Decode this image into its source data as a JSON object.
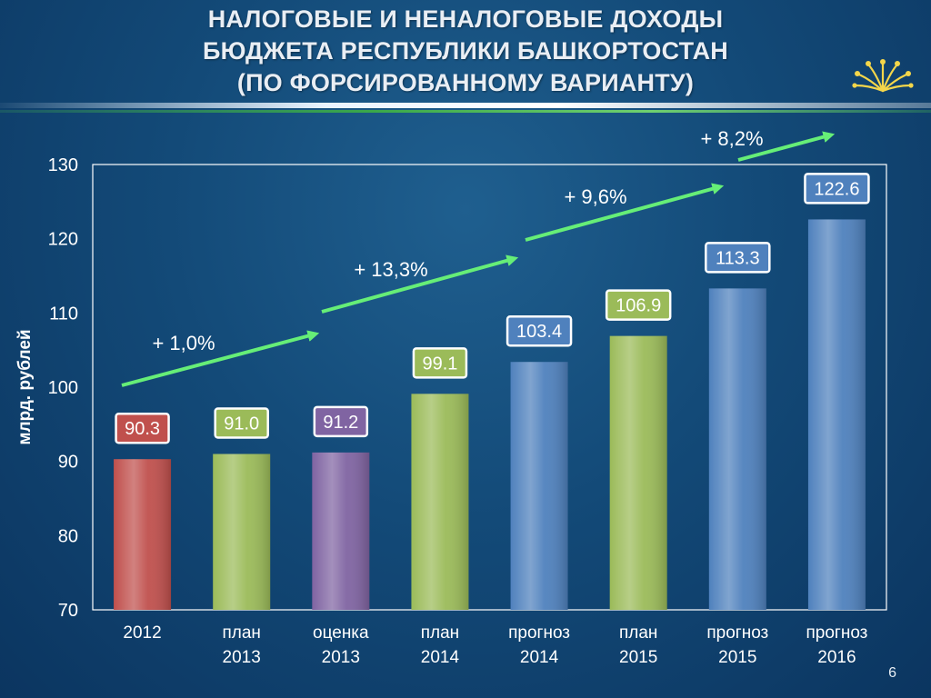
{
  "header": {
    "title_lines": [
      "НАЛОГОВЫЕ И НЕНАЛОГОВЫЕ ДОХОДЫ",
      "БЮДЖЕТА РЕСПУБЛИКИ БАШКОРТОСТАН",
      "(ПО ФОРСИРОВАННОМУ ВАРИАНТУ)"
    ]
  },
  "page_number": "6",
  "logo_icon": "bashkortostan-kurai-flower-icon",
  "chart_data": {
    "type": "bar",
    "ylabel": "млрд. рублей",
    "xlabel": "",
    "ylim": [
      70,
      130
    ],
    "yticks": [
      70,
      80,
      90,
      100,
      110,
      120,
      130
    ],
    "grid": false,
    "categories": [
      [
        "2012"
      ],
      [
        "план",
        "2013"
      ],
      [
        "оценка",
        "2013"
      ],
      [
        "план",
        "2014"
      ],
      [
        "прогноз",
        "2014"
      ],
      [
        "план",
        "2015"
      ],
      [
        "прогноз",
        "2015"
      ],
      [
        "прогноз",
        "2016"
      ]
    ],
    "values": [
      90.3,
      91.0,
      91.2,
      99.1,
      103.4,
      106.9,
      113.3,
      122.6
    ],
    "value_labels": [
      "90.3",
      "91.0",
      "91.2",
      "99.1",
      "103.4",
      "106.9",
      "113.3",
      "122.6"
    ],
    "bar_colors": [
      "#c0504d",
      "#9bbb59",
      "#8064a2",
      "#9bbb59",
      "#4f81bd",
      "#9bbb59",
      "#4f81bd",
      "#4f81bd"
    ],
    "annotations": [
      {
        "text": "+ 1,0%",
        "from_category": 0,
        "to_category": 2
      },
      {
        "text": "+ 13,3%",
        "from_category": 2,
        "to_category": 4
      },
      {
        "text": "+ 9,6%",
        "from_category": 4,
        "to_category": 6
      },
      {
        "text": "+ 8,2%",
        "from_category": 6,
        "to_category": 7
      }
    ],
    "arrow_color": "#66ee77"
  }
}
